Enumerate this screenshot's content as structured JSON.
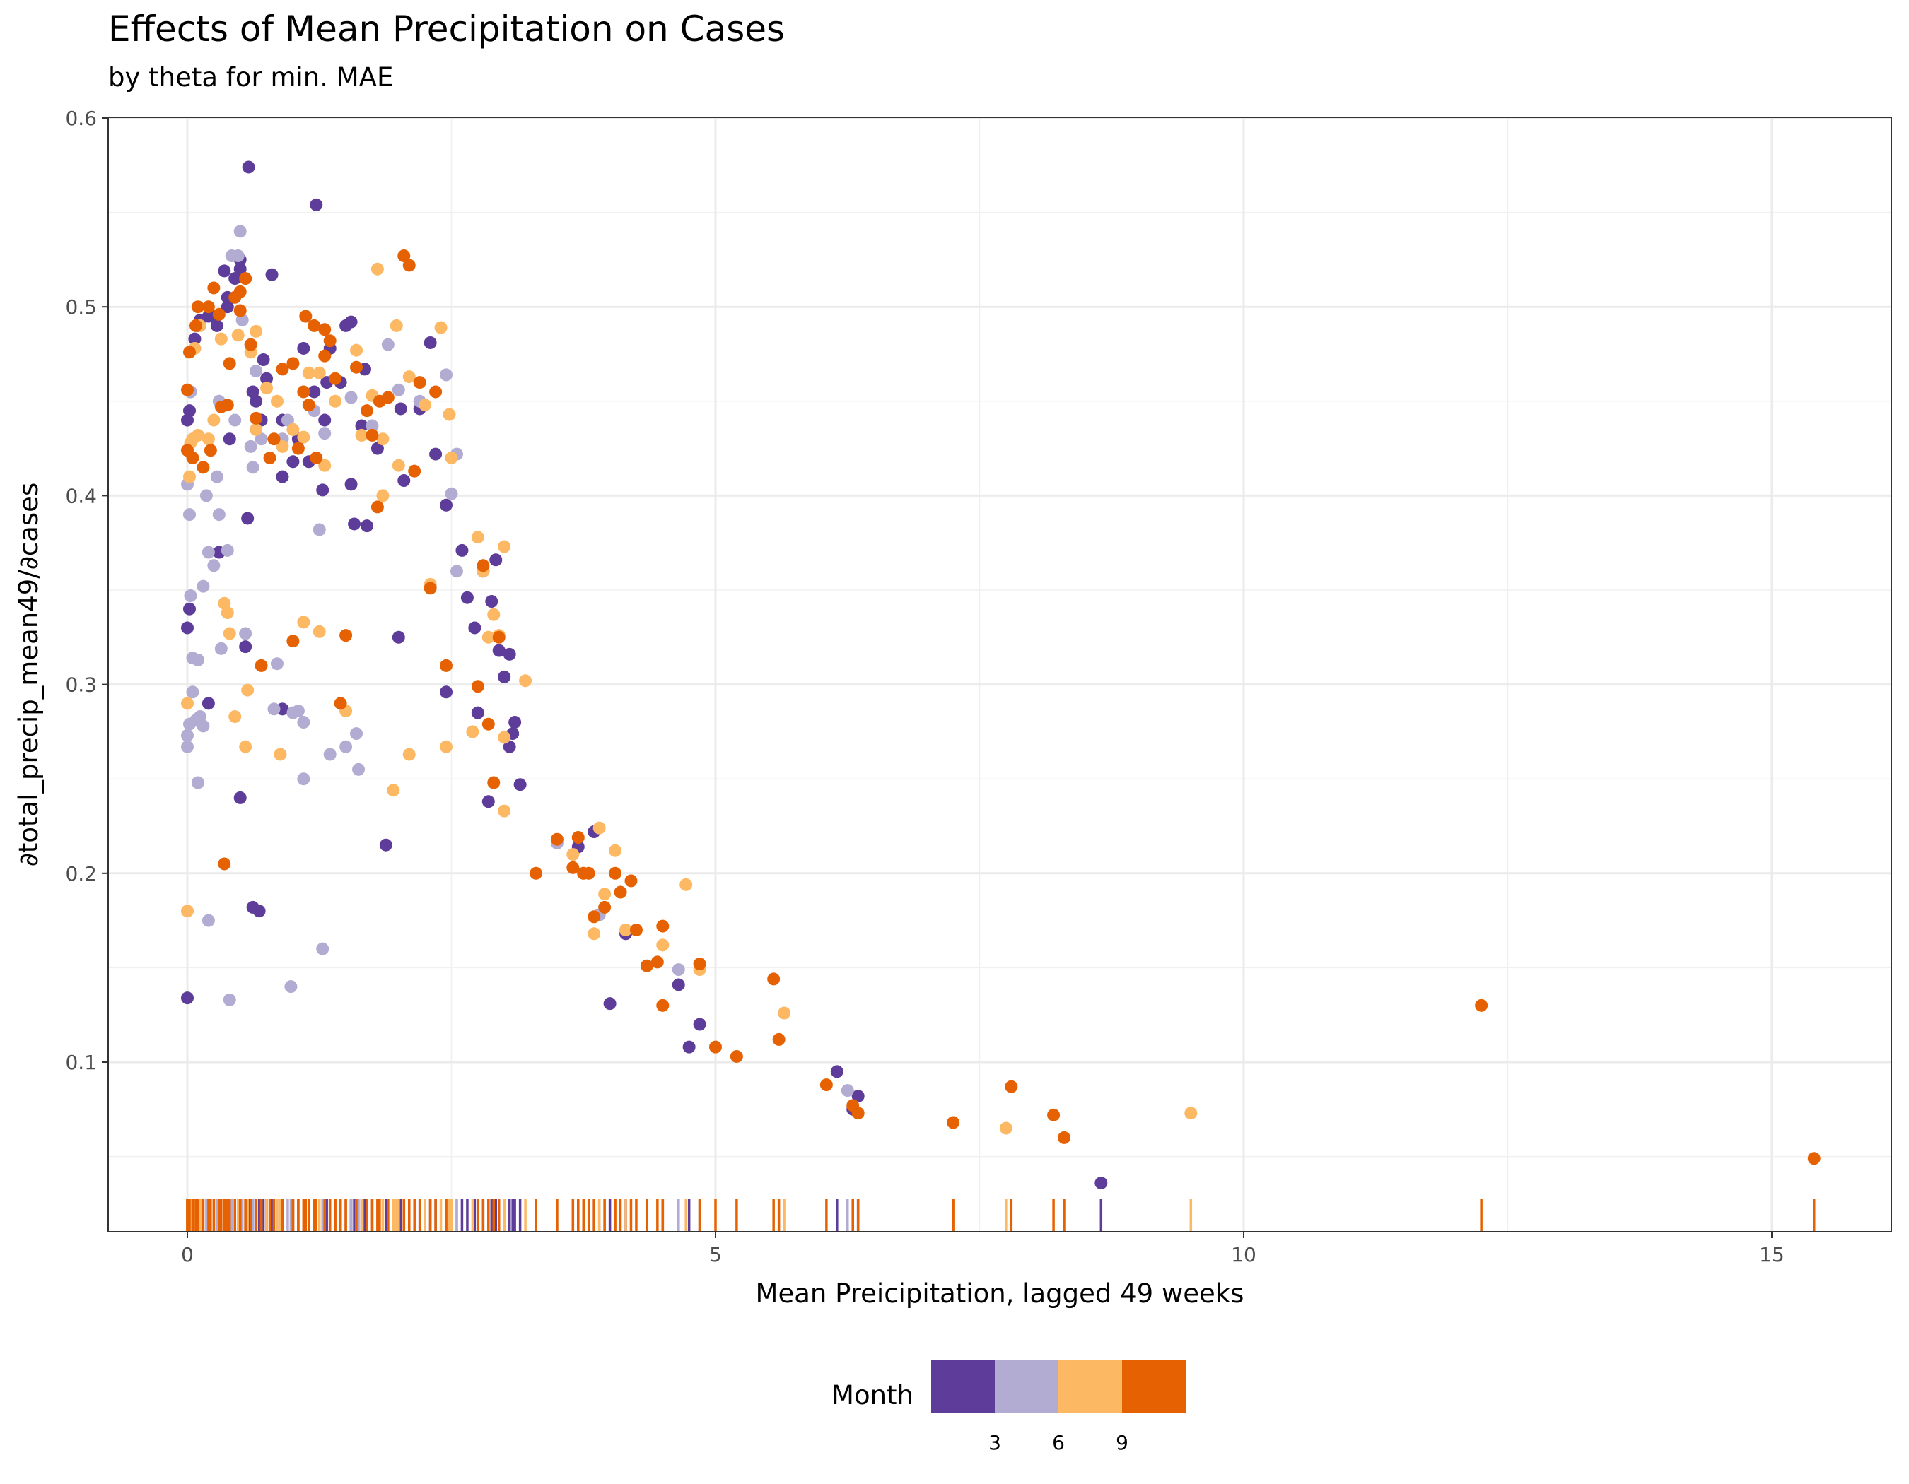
{
  "chart_data": {
    "type": "scatter",
    "title": "Effects of Mean Precipitation on Cases",
    "subtitle": "by theta for min. MAE",
    "xlabel": "Mean Preicipitation, lagged 49 weeks",
    "ylabel": "∂total_precip_mean49/∂cases",
    "xlim": [
      -0.75,
      16.2
    ],
    "ylim": [
      0.009,
      0.6
    ],
    "x_ticks": [
      0,
      5,
      10,
      15
    ],
    "x_tick_labels": [
      "0",
      "5",
      "10",
      "15"
    ],
    "y_ticks": [
      0.1,
      0.2,
      0.3,
      0.4,
      0.5,
      0.6
    ],
    "y_tick_labels": [
      "0.1",
      "0.2",
      "0.3",
      "0.4",
      "0.5",
      "0.6"
    ],
    "grid": true,
    "rug": "bottom",
    "legend": {
      "title": "Month",
      "position": "bottom",
      "labels": [
        "3",
        "6",
        "9"
      ],
      "colors": [
        "#5e3c99",
        "#b2abd2",
        "#fdb863",
        "#e66101"
      ]
    },
    "colors": {
      "dark_purple": "#5e3c99",
      "light_purple": "#b2abd2",
      "light_orange": "#fdb863",
      "dark_orange": "#e66101"
    },
    "points": [
      [
        0.0,
        0.134,
        0
      ],
      [
        0.0,
        0.33,
        0
      ],
      [
        0.02,
        0.34,
        0
      ],
      [
        0.0,
        0.44,
        0
      ],
      [
        0.02,
        0.445,
        0
      ],
      [
        0.03,
        0.455,
        0
      ],
      [
        0.1,
        0.49,
        0
      ],
      [
        0.07,
        0.483,
        0
      ],
      [
        0.12,
        0.493,
        0
      ],
      [
        0.2,
        0.29,
        0
      ],
      [
        0.2,
        0.495,
        0
      ],
      [
        0.25,
        0.495,
        0
      ],
      [
        0.28,
        0.49,
        0
      ],
      [
        0.3,
        0.37,
        0
      ],
      [
        0.35,
        0.519,
        0
      ],
      [
        0.38,
        0.5,
        0
      ],
      [
        0.38,
        0.505,
        0
      ],
      [
        0.4,
        0.43,
        0
      ],
      [
        0.45,
        0.515,
        0
      ],
      [
        0.5,
        0.24,
        0
      ],
      [
        0.5,
        0.52,
        0
      ],
      [
        0.5,
        0.525,
        0
      ],
      [
        0.55,
        0.32,
        0
      ],
      [
        0.57,
        0.388,
        0
      ],
      [
        0.58,
        0.574,
        0
      ],
      [
        0.62,
        0.182,
        0
      ],
      [
        0.62,
        0.455,
        0
      ],
      [
        0.65,
        0.45,
        0
      ],
      [
        0.68,
        0.18,
        0
      ],
      [
        0.7,
        0.44,
        0
      ],
      [
        0.72,
        0.472,
        0
      ],
      [
        0.75,
        0.462,
        0
      ],
      [
        0.8,
        0.517,
        0
      ],
      [
        0.9,
        0.287,
        0
      ],
      [
        0.9,
        0.41,
        0
      ],
      [
        0.9,
        0.44,
        0
      ],
      [
        1.0,
        0.418,
        0
      ],
      [
        1.05,
        0.43,
        0
      ],
      [
        1.1,
        0.478,
        0
      ],
      [
        1.15,
        0.418,
        0
      ],
      [
        1.2,
        0.455,
        0
      ],
      [
        1.22,
        0.554,
        0
      ],
      [
        1.28,
        0.403,
        0
      ],
      [
        1.3,
        0.44,
        0
      ],
      [
        1.32,
        0.46,
        0
      ],
      [
        1.35,
        0.478,
        0
      ],
      [
        1.45,
        0.46,
        0
      ],
      [
        1.5,
        0.49,
        0
      ],
      [
        1.55,
        0.492,
        0
      ],
      [
        1.55,
        0.406,
        0
      ],
      [
        1.58,
        0.385,
        0
      ],
      [
        1.65,
        0.437,
        0
      ],
      [
        1.68,
        0.467,
        0
      ],
      [
        1.7,
        0.384,
        0
      ],
      [
        1.8,
        0.425,
        0
      ],
      [
        1.88,
        0.215,
        0
      ],
      [
        2.0,
        0.325,
        0
      ],
      [
        2.02,
        0.446,
        0
      ],
      [
        2.05,
        0.408,
        0
      ],
      [
        2.2,
        0.446,
        0
      ],
      [
        2.3,
        0.481,
        0
      ],
      [
        2.35,
        0.422,
        0
      ],
      [
        2.3,
        0.352,
        0
      ],
      [
        2.45,
        0.395,
        0
      ],
      [
        2.45,
        0.296,
        0
      ],
      [
        2.6,
        0.371,
        0
      ],
      [
        2.65,
        0.346,
        0
      ],
      [
        2.72,
        0.33,
        0
      ],
      [
        2.75,
        0.285,
        0
      ],
      [
        2.8,
        0.36,
        0
      ],
      [
        2.85,
        0.238,
        0
      ],
      [
        2.88,
        0.344,
        0
      ],
      [
        2.92,
        0.366,
        0
      ],
      [
        2.95,
        0.318,
        0
      ],
      [
        3.0,
        0.304,
        0
      ],
      [
        3.05,
        0.316,
        0
      ],
      [
        3.05,
        0.267,
        0
      ],
      [
        3.08,
        0.274,
        0
      ],
      [
        3.1,
        0.28,
        0
      ],
      [
        3.15,
        0.247,
        0
      ],
      [
        3.7,
        0.214,
        0
      ],
      [
        3.85,
        0.222,
        0
      ],
      [
        4.0,
        0.131,
        0
      ],
      [
        4.15,
        0.168,
        0
      ],
      [
        4.65,
        0.141,
        0
      ],
      [
        4.85,
        0.12,
        0
      ],
      [
        4.75,
        0.108,
        0
      ],
      [
        6.15,
        0.095,
        0
      ],
      [
        6.3,
        0.075,
        0
      ],
      [
        6.35,
        0.082,
        0
      ],
      [
        8.65,
        0.036,
        0
      ],
      [
        0.0,
        0.267,
        1
      ],
      [
        0.0,
        0.273,
        1
      ],
      [
        0.02,
        0.279,
        1
      ],
      [
        0.02,
        0.39,
        1
      ],
      [
        0.0,
        0.406,
        1
      ],
      [
        0.03,
        0.347,
        1
      ],
      [
        0.03,
        0.455,
        1
      ],
      [
        0.05,
        0.314,
        1
      ],
      [
        0.05,
        0.296,
        1
      ],
      [
        0.08,
        0.281,
        1
      ],
      [
        0.1,
        0.313,
        1
      ],
      [
        0.1,
        0.248,
        1
      ],
      [
        0.12,
        0.283,
        1
      ],
      [
        0.15,
        0.352,
        1
      ],
      [
        0.15,
        0.278,
        1
      ],
      [
        0.18,
        0.4,
        1
      ],
      [
        0.2,
        0.37,
        1
      ],
      [
        0.2,
        0.175,
        1
      ],
      [
        0.25,
        0.363,
        1
      ],
      [
        0.28,
        0.41,
        1
      ],
      [
        0.3,
        0.45,
        1
      ],
      [
        0.3,
        0.39,
        1
      ],
      [
        0.32,
        0.319,
        1
      ],
      [
        0.38,
        0.371,
        1
      ],
      [
        0.4,
        0.133,
        1
      ],
      [
        0.42,
        0.527,
        1
      ],
      [
        0.45,
        0.44,
        1
      ],
      [
        0.48,
        0.527,
        1
      ],
      [
        0.5,
        0.54,
        1
      ],
      [
        0.52,
        0.493,
        1
      ],
      [
        0.55,
        0.327,
        1
      ],
      [
        0.6,
        0.426,
        1
      ],
      [
        0.62,
        0.415,
        1
      ],
      [
        0.65,
        0.466,
        1
      ],
      [
        0.7,
        0.43,
        1
      ],
      [
        0.82,
        0.287,
        1
      ],
      [
        0.85,
        0.311,
        1
      ],
      [
        0.9,
        0.43,
        1
      ],
      [
        0.95,
        0.44,
        1
      ],
      [
        0.98,
        0.14,
        1
      ],
      [
        1.0,
        0.285,
        1
      ],
      [
        1.05,
        0.286,
        1
      ],
      [
        1.1,
        0.28,
        1
      ],
      [
        1.1,
        0.25,
        1
      ],
      [
        1.2,
        0.445,
        1
      ],
      [
        1.25,
        0.382,
        1
      ],
      [
        1.28,
        0.16,
        1
      ],
      [
        1.3,
        0.433,
        1
      ],
      [
        1.35,
        0.263,
        1
      ],
      [
        1.5,
        0.267,
        1
      ],
      [
        1.55,
        0.452,
        1
      ],
      [
        1.6,
        0.274,
        1
      ],
      [
        1.62,
        0.255,
        1
      ],
      [
        1.75,
        0.437,
        1
      ],
      [
        1.9,
        0.48,
        1
      ],
      [
        2.0,
        0.456,
        1
      ],
      [
        2.2,
        0.45,
        1
      ],
      [
        2.45,
        0.464,
        1
      ],
      [
        2.5,
        0.401,
        1
      ],
      [
        2.55,
        0.36,
        1
      ],
      [
        2.55,
        0.422,
        1
      ],
      [
        2.8,
        0.362,
        1
      ],
      [
        3.5,
        0.216,
        1
      ],
      [
        3.9,
        0.178,
        1
      ],
      [
        4.65,
        0.149,
        1
      ],
      [
        6.25,
        0.085,
        1
      ],
      [
        0.0,
        0.18,
        2
      ],
      [
        0.0,
        0.29,
        2
      ],
      [
        0.02,
        0.41,
        2
      ],
      [
        0.03,
        0.428,
        2
      ],
      [
        0.05,
        0.43,
        2
      ],
      [
        0.07,
        0.478,
        2
      ],
      [
        0.1,
        0.432,
        2
      ],
      [
        0.12,
        0.49,
        2
      ],
      [
        0.2,
        0.43,
        2
      ],
      [
        0.25,
        0.44,
        2
      ],
      [
        0.32,
        0.483,
        2
      ],
      [
        0.35,
        0.343,
        2
      ],
      [
        0.38,
        0.338,
        2
      ],
      [
        0.4,
        0.327,
        2
      ],
      [
        0.45,
        0.283,
        2
      ],
      [
        0.48,
        0.485,
        2
      ],
      [
        0.55,
        0.267,
        2
      ],
      [
        0.57,
        0.297,
        2
      ],
      [
        0.6,
        0.476,
        2
      ],
      [
        0.65,
        0.487,
        2
      ],
      [
        0.65,
        0.435,
        2
      ],
      [
        0.75,
        0.457,
        2
      ],
      [
        0.85,
        0.45,
        2
      ],
      [
        0.88,
        0.263,
        2
      ],
      [
        0.9,
        0.426,
        2
      ],
      [
        1.0,
        0.435,
        2
      ],
      [
        1.1,
        0.431,
        2
      ],
      [
        1.1,
        0.333,
        2
      ],
      [
        1.15,
        0.465,
        2
      ],
      [
        1.25,
        0.328,
        2
      ],
      [
        1.25,
        0.465,
        2
      ],
      [
        1.3,
        0.416,
        2
      ],
      [
        1.4,
        0.45,
        2
      ],
      [
        1.5,
        0.286,
        2
      ],
      [
        1.6,
        0.477,
        2
      ],
      [
        1.65,
        0.432,
        2
      ],
      [
        1.75,
        0.453,
        2
      ],
      [
        1.8,
        0.52,
        2
      ],
      [
        1.85,
        0.43,
        2
      ],
      [
        1.85,
        0.4,
        2
      ],
      [
        1.95,
        0.244,
        2
      ],
      [
        1.98,
        0.49,
        2
      ],
      [
        2.0,
        0.416,
        2
      ],
      [
        2.1,
        0.263,
        2
      ],
      [
        2.1,
        0.463,
        2
      ],
      [
        2.25,
        0.448,
        2
      ],
      [
        2.3,
        0.353,
        2
      ],
      [
        2.4,
        0.489,
        2
      ],
      [
        2.45,
        0.267,
        2
      ],
      [
        2.48,
        0.443,
        2
      ],
      [
        2.5,
        0.42,
        2
      ],
      [
        2.7,
        0.275,
        2
      ],
      [
        2.75,
        0.378,
        2
      ],
      [
        2.8,
        0.36,
        2
      ],
      [
        2.85,
        0.325,
        2
      ],
      [
        2.9,
        0.337,
        2
      ],
      [
        2.95,
        0.326,
        2
      ],
      [
        3.0,
        0.272,
        2
      ],
      [
        3.0,
        0.233,
        2
      ],
      [
        3.0,
        0.373,
        2
      ],
      [
        3.2,
        0.302,
        2
      ],
      [
        3.65,
        0.21,
        2
      ],
      [
        3.75,
        0.2,
        2
      ],
      [
        3.85,
        0.168,
        2
      ],
      [
        3.9,
        0.224,
        2
      ],
      [
        3.95,
        0.189,
        2
      ],
      [
        4.05,
        0.212,
        2
      ],
      [
        4.15,
        0.17,
        2
      ],
      [
        4.5,
        0.162,
        2
      ],
      [
        4.72,
        0.194,
        2
      ],
      [
        4.85,
        0.149,
        2
      ],
      [
        5.65,
        0.126,
        2
      ],
      [
        7.75,
        0.065,
        2
      ],
      [
        9.5,
        0.073,
        2
      ],
      [
        0.0,
        0.424,
        3
      ],
      [
        0.0,
        0.456,
        3
      ],
      [
        0.02,
        0.476,
        3
      ],
      [
        0.05,
        0.42,
        3
      ],
      [
        0.08,
        0.49,
        3
      ],
      [
        0.1,
        0.5,
        3
      ],
      [
        0.15,
        0.415,
        3
      ],
      [
        0.2,
        0.5,
        3
      ],
      [
        0.22,
        0.424,
        3
      ],
      [
        0.25,
        0.51,
        3
      ],
      [
        0.3,
        0.496,
        3
      ],
      [
        0.32,
        0.447,
        3
      ],
      [
        0.35,
        0.205,
        3
      ],
      [
        0.38,
        0.448,
        3
      ],
      [
        0.4,
        0.47,
        3
      ],
      [
        0.45,
        0.505,
        3
      ],
      [
        0.5,
        0.508,
        3
      ],
      [
        0.5,
        0.498,
        3
      ],
      [
        0.55,
        0.515,
        3
      ],
      [
        0.6,
        0.48,
        3
      ],
      [
        0.65,
        0.441,
        3
      ],
      [
        0.7,
        0.31,
        3
      ],
      [
        0.78,
        0.42,
        3
      ],
      [
        0.82,
        0.43,
        3
      ],
      [
        0.9,
        0.467,
        3
      ],
      [
        1.0,
        0.323,
        3
      ],
      [
        1.0,
        0.47,
        3
      ],
      [
        1.05,
        0.425,
        3
      ],
      [
        1.1,
        0.455,
        3
      ],
      [
        1.12,
        0.495,
        3
      ],
      [
        1.15,
        0.448,
        3
      ],
      [
        1.2,
        0.49,
        3
      ],
      [
        1.22,
        0.42,
        3
      ],
      [
        1.3,
        0.488,
        3
      ],
      [
        1.3,
        0.474,
        3
      ],
      [
        1.35,
        0.482,
        3
      ],
      [
        1.4,
        0.462,
        3
      ],
      [
        1.45,
        0.29,
        3
      ],
      [
        1.5,
        0.326,
        3
      ],
      [
        1.6,
        0.468,
        3
      ],
      [
        1.7,
        0.445,
        3
      ],
      [
        1.75,
        0.432,
        3
      ],
      [
        1.8,
        0.394,
        3
      ],
      [
        1.82,
        0.45,
        3
      ],
      [
        1.9,
        0.452,
        3
      ],
      [
        2.05,
        0.527,
        3
      ],
      [
        2.1,
        0.522,
        3
      ],
      [
        2.15,
        0.413,
        3
      ],
      [
        2.2,
        0.46,
        3
      ],
      [
        2.3,
        0.351,
        3
      ],
      [
        2.35,
        0.455,
        3
      ],
      [
        2.45,
        0.31,
        3
      ],
      [
        2.75,
        0.299,
        3
      ],
      [
        2.8,
        0.363,
        3
      ],
      [
        2.85,
        0.279,
        3
      ],
      [
        2.9,
        0.248,
        3
      ],
      [
        2.95,
        0.325,
        3
      ],
      [
        3.3,
        0.2,
        3
      ],
      [
        3.5,
        0.218,
        3
      ],
      [
        3.65,
        0.203,
        3
      ],
      [
        3.7,
        0.219,
        3
      ],
      [
        3.75,
        0.2,
        3
      ],
      [
        3.8,
        0.2,
        3
      ],
      [
        3.85,
        0.177,
        3
      ],
      [
        3.95,
        0.182,
        3
      ],
      [
        4.05,
        0.2,
        3
      ],
      [
        4.1,
        0.19,
        3
      ],
      [
        4.2,
        0.196,
        3
      ],
      [
        4.25,
        0.17,
        3
      ],
      [
        4.35,
        0.151,
        3
      ],
      [
        4.45,
        0.153,
        3
      ],
      [
        4.5,
        0.172,
        3
      ],
      [
        4.5,
        0.13,
        3
      ],
      [
        4.85,
        0.152,
        3
      ],
      [
        5.0,
        0.108,
        3
      ],
      [
        5.2,
        0.103,
        3
      ],
      [
        5.55,
        0.144,
        3
      ],
      [
        5.6,
        0.112,
        3
      ],
      [
        6.05,
        0.088,
        3
      ],
      [
        6.3,
        0.077,
        3
      ],
      [
        6.35,
        0.073,
        3
      ],
      [
        7.25,
        0.068,
        3
      ],
      [
        7.8,
        0.087,
        3
      ],
      [
        8.2,
        0.072,
        3
      ],
      [
        8.3,
        0.06,
        3
      ],
      [
        12.25,
        0.13,
        3
      ],
      [
        15.4,
        0.049,
        3
      ]
    ]
  }
}
